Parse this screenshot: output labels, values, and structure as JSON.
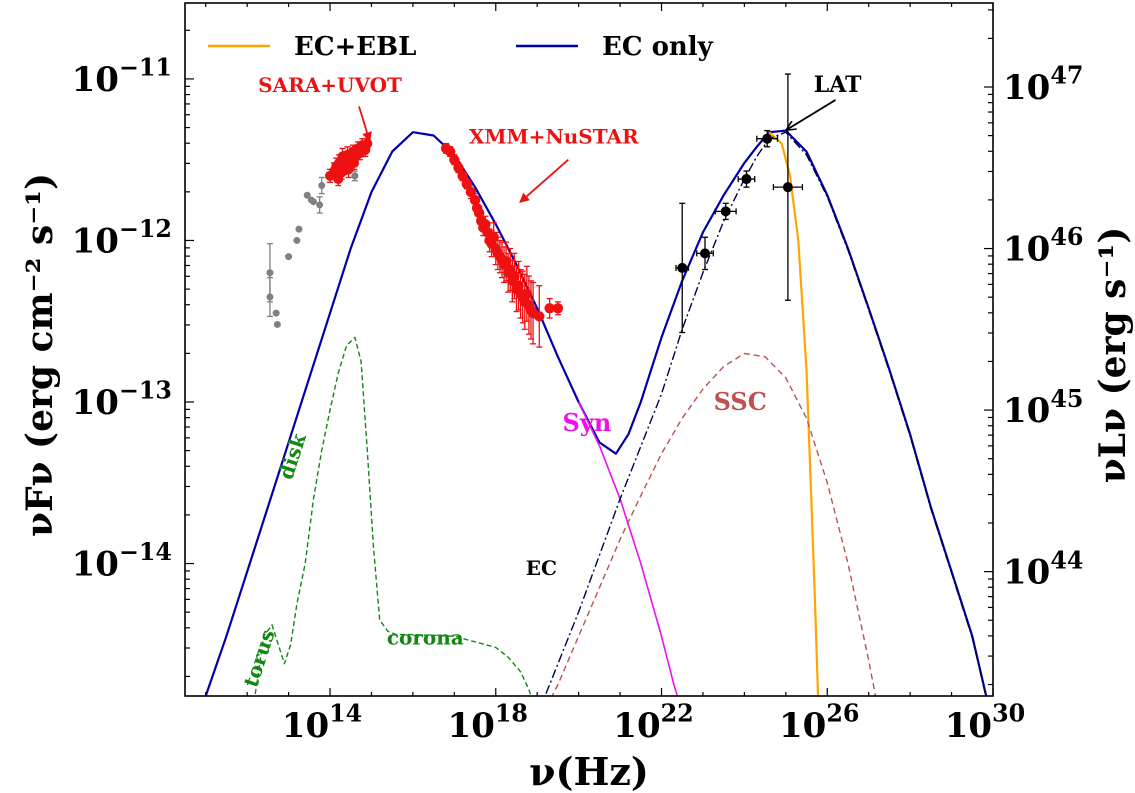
{
  "chart_data": {
    "type": "line",
    "xlabel": "ν(Hz)",
    "ylabel": "νFν (erg cm⁻² s⁻¹)",
    "ylabel_right": "νLν (erg s⁻¹)",
    "xscale": "log",
    "yscale": "log",
    "xlim_log10": [
      10.5,
      30.0
    ],
    "ylim_log10": [
      -14.82,
      -10.53
    ],
    "grid": false,
    "legend_position": "top",
    "x_ticks": [
      {
        "exp": 14,
        "label": "10",
        "sup": "14"
      },
      {
        "exp": 18,
        "label": "10",
        "sup": "18"
      },
      {
        "exp": 22,
        "label": "10",
        "sup": "22"
      },
      {
        "exp": 26,
        "label": "10",
        "sup": "26"
      },
      {
        "exp": 30,
        "label": "10",
        "sup": "30"
      }
    ],
    "y_ticks": [
      {
        "exp": -11,
        "label": "10",
        "sup": "−11"
      },
      {
        "exp": -12,
        "label": "10",
        "sup": "−12"
      },
      {
        "exp": -13,
        "label": "10",
        "sup": "−13"
      },
      {
        "exp": -14,
        "label": "10",
        "sup": "−14"
      }
    ],
    "y_ticks_right": [
      {
        "at_left_log10": -11.05,
        "label": "10",
        "sup": "47"
      },
      {
        "at_left_log10": -12.05,
        "label": "10",
        "sup": "46"
      },
      {
        "at_left_log10": -13.05,
        "label": "10",
        "sup": "45"
      },
      {
        "at_left_log10": -14.05,
        "label": "10",
        "sup": "44"
      }
    ],
    "legend": [
      {
        "label": "EC+EBL",
        "color": "#ffa500"
      },
      {
        "label": "EC only",
        "color": "#0000aa"
      }
    ],
    "annotations": [
      {
        "text": "SARA+UVOT",
        "color": "#ee1111",
        "x": 14.0,
        "y": -11.08
      },
      {
        "text": "XMM+NuSTAR",
        "color": "#ee1111",
        "x": 19.4,
        "y": -11.4
      },
      {
        "text": "LAT",
        "color": "#000000",
        "x": 26.25,
        "y": -11.08
      },
      {
        "text": "Syn",
        "color": "#ee11ee",
        "x": 20.2,
        "y": -13.18
      },
      {
        "text": "SSC",
        "color": "#c05050",
        "x": 23.9,
        "y": -13.05
      },
      {
        "text": "EC",
        "color": "#000000",
        "x": 19.1,
        "y": -14.07
      },
      {
        "text": "disk",
        "color": "#118811",
        "x": 13.25,
        "y": -13.35,
        "rotate": -72
      },
      {
        "text": "torus",
        "color": "#118811",
        "x": 12.45,
        "y": -14.6,
        "rotate": -72
      },
      {
        "text": "corona",
        "color": "#118811",
        "x": 16.3,
        "y": -14.5
      }
    ],
    "series": [
      {
        "name": "EC only",
        "color": "#0000aa",
        "width": 2.2,
        "dash": "",
        "x": [
          10.5,
          11.0,
          11.5,
          12.0,
          12.5,
          13.0,
          13.5,
          14.0,
          14.5,
          15.0,
          15.5,
          16.0,
          16.5,
          17.0,
          17.5,
          18.0,
          18.5,
          19.0,
          19.5,
          20.0,
          20.5,
          20.9,
          21.2,
          21.5,
          22.0,
          22.5,
          23.0,
          23.5,
          24.0,
          24.3,
          24.6,
          25.0,
          25.5,
          26.0,
          26.5,
          27.0,
          27.5,
          28.0,
          28.5,
          29.0,
          29.5,
          30.0
        ],
        "y": [
          -15.2,
          -14.82,
          -14.45,
          -14.05,
          -13.65,
          -13.25,
          -12.85,
          -12.45,
          -12.05,
          -11.7,
          -11.45,
          -11.33,
          -11.35,
          -11.47,
          -11.67,
          -11.9,
          -12.15,
          -12.42,
          -12.72,
          -13.0,
          -13.25,
          -13.32,
          -13.2,
          -13.0,
          -12.6,
          -12.25,
          -11.95,
          -11.72,
          -11.52,
          -11.42,
          -11.33,
          -11.32,
          -11.45,
          -11.72,
          -12.05,
          -12.42,
          -12.8,
          -13.2,
          -13.65,
          -14.05,
          -14.45,
          -15.0
        ]
      },
      {
        "name": "EC+EBL",
        "color": "#ffa500",
        "width": 2.2,
        "dash": "",
        "x": [
          24.6,
          24.9,
          25.1,
          25.3,
          25.5,
          25.6,
          25.7,
          25.8
        ],
        "y": [
          -11.33,
          -11.4,
          -11.6,
          -12.0,
          -12.8,
          -13.5,
          -14.2,
          -15.0
        ]
      },
      {
        "name": "Syn",
        "color": "#ee11ee",
        "width": 1.6,
        "dash": "",
        "x": [
          20.0,
          20.5,
          21.0,
          21.5,
          22.0,
          22.3,
          22.6,
          22.8
        ],
        "y": [
          -13.0,
          -13.27,
          -13.6,
          -14.0,
          -14.45,
          -14.75,
          -15.0,
          -15.2
        ]
      },
      {
        "name": "EC",
        "color": "#000044",
        "width": 1.4,
        "dash": "9,3,2,3",
        "x": [
          18.9,
          19.3,
          20.0,
          21.0,
          22.0,
          22.5,
          23.0,
          23.5,
          24.0,
          24.3,
          24.6,
          25.0,
          25.5,
          26.0,
          26.5,
          27.0,
          27.5,
          28.0,
          28.5,
          29.0,
          29.5,
          30.0
        ],
        "y": [
          -15.0,
          -14.75,
          -14.3,
          -13.6,
          -12.95,
          -12.55,
          -12.2,
          -11.88,
          -11.62,
          -11.48,
          -11.37,
          -11.33,
          -11.47,
          -11.73,
          -12.06,
          -12.43,
          -12.81,
          -13.21,
          -13.66,
          -14.06,
          -14.46,
          -15.01
        ]
      },
      {
        "name": "SSC",
        "color": "#c05050",
        "width": 1.4,
        "dash": "6,4",
        "x": [
          19.0,
          19.5,
          20.0,
          20.5,
          21.0,
          21.5,
          22.0,
          22.5,
          23.0,
          23.5,
          24.0,
          24.5,
          25.0,
          25.5,
          26.0,
          26.5,
          27.0,
          27.3
        ],
        "y": [
          -15.0,
          -14.75,
          -14.45,
          -14.15,
          -13.85,
          -13.58,
          -13.32,
          -13.1,
          -12.92,
          -12.78,
          -12.7,
          -12.72,
          -12.85,
          -13.1,
          -13.5,
          -14.0,
          -14.6,
          -15.0
        ]
      },
      {
        "name": "disk+torus+corona",
        "color": "#118811",
        "width": 1.4,
        "dash": "5,3",
        "x": [
          12.0,
          12.2,
          12.4,
          12.6,
          12.75,
          12.9,
          13.05,
          13.2,
          13.4,
          13.6,
          13.8,
          14.0,
          14.2,
          14.4,
          14.6,
          14.75,
          14.9,
          15.05,
          15.2,
          15.4,
          15.6,
          16.0,
          17.0,
          18.0,
          18.3,
          18.6,
          18.8,
          18.95
        ],
        "y": [
          -15.1,
          -14.8,
          -14.45,
          -14.38,
          -14.5,
          -14.62,
          -14.5,
          -14.25,
          -14.0,
          -13.6,
          -13.3,
          -13.05,
          -12.82,
          -12.65,
          -12.6,
          -12.75,
          -13.3,
          -13.9,
          -14.35,
          -14.42,
          -14.44,
          -14.44,
          -14.45,
          -14.52,
          -14.58,
          -14.67,
          -14.78,
          -14.9
        ]
      }
    ],
    "points": [
      {
        "name": "archival",
        "color": "#808080",
        "r": 3.5,
        "data": [
          [
            12.55,
            -12.2,
            0.18,
            0
          ],
          [
            12.55,
            -12.35,
            0.12,
            0
          ],
          [
            12.7,
            -12.45,
            0,
            0
          ],
          [
            12.73,
            -12.52,
            0,
            0
          ],
          [
            13.0,
            -12.1,
            0,
            0
          ],
          [
            13.2,
            -12.0,
            0,
            0
          ],
          [
            13.25,
            -11.93,
            0,
            0
          ],
          [
            13.45,
            -11.72,
            0,
            0
          ],
          [
            13.55,
            -11.75,
            0,
            0
          ],
          [
            13.6,
            -11.76,
            0,
            0
          ],
          [
            13.75,
            -11.78,
            0.05,
            0
          ],
          [
            13.8,
            -11.66,
            0.05,
            0
          ],
          [
            14.1,
            -11.6,
            0,
            0
          ],
          [
            14.6,
            -11.6,
            0.03,
            0
          ]
        ]
      },
      {
        "name": "SARA+UVOT",
        "color": "#ee1111",
        "r": 5,
        "data": [
          [
            14.0,
            -11.6,
            0.04,
            0
          ],
          [
            14.1,
            -11.57,
            0.05,
            0
          ],
          [
            14.15,
            -11.54,
            0.05,
            0
          ],
          [
            14.2,
            -11.62,
            0.04,
            0
          ],
          [
            14.22,
            -11.52,
            0.05,
            0
          ],
          [
            14.28,
            -11.58,
            0.04,
            0
          ],
          [
            14.3,
            -11.48,
            0.05,
            0
          ],
          [
            14.35,
            -11.55,
            0.04,
            0
          ],
          [
            14.38,
            -11.5,
            0.05,
            0
          ],
          [
            14.42,
            -11.47,
            0.05,
            0
          ],
          [
            14.45,
            -11.56,
            0.05,
            0
          ],
          [
            14.5,
            -11.5,
            0.04,
            0
          ],
          [
            14.55,
            -11.45,
            0.04,
            0
          ],
          [
            14.58,
            -11.52,
            0.04,
            0
          ],
          [
            14.62,
            -11.48,
            0.04,
            0
          ],
          [
            14.67,
            -11.43,
            0.04,
            0
          ],
          [
            14.72,
            -11.46,
            0.04,
            0
          ],
          [
            14.78,
            -11.41,
            0.04,
            0
          ],
          [
            14.85,
            -11.44,
            0.04,
            0
          ],
          [
            14.9,
            -11.4,
            0.03,
            0
          ]
        ]
      },
      {
        "name": "XMM+NuSTAR",
        "color": "#ee1111",
        "r": 5.2,
        "data": [
          [
            16.8,
            -11.43,
            0.03,
            0
          ],
          [
            16.9,
            -11.45,
            0.03,
            0
          ],
          [
            17.0,
            -11.5,
            0.03,
            0
          ],
          [
            17.1,
            -11.55,
            0.03,
            0
          ],
          [
            17.2,
            -11.6,
            0.03,
            0
          ],
          [
            17.3,
            -11.65,
            0.03,
            0
          ],
          [
            17.4,
            -11.7,
            0.04,
            0
          ],
          [
            17.5,
            -11.75,
            0.04,
            0
          ],
          [
            17.55,
            -11.8,
            0.04,
            0
          ],
          [
            17.6,
            -11.83,
            0.04,
            0
          ],
          [
            17.65,
            -11.88,
            0.05,
            0
          ],
          [
            17.7,
            -11.92,
            0.05,
            0
          ],
          [
            17.75,
            -11.9,
            0.05,
            0
          ],
          [
            17.8,
            -11.95,
            0.06,
            0
          ],
          [
            17.85,
            -12.0,
            0.07,
            0
          ],
          [
            17.9,
            -12.02,
            0.08,
            0
          ],
          [
            17.95,
            -11.98,
            0.09,
            0
          ],
          [
            18.0,
            -12.05,
            0.1,
            0
          ],
          [
            18.05,
            -12.08,
            0.1,
            0
          ],
          [
            18.1,
            -12.1,
            0.1,
            0
          ],
          [
            18.15,
            -12.12,
            0.11,
            0
          ],
          [
            18.2,
            -12.15,
            0.11,
            0
          ],
          [
            18.25,
            -12.13,
            0.12,
            0
          ],
          [
            18.3,
            -12.2,
            0.12,
            0
          ],
          [
            18.35,
            -12.18,
            0.13,
            0
          ],
          [
            18.4,
            -12.25,
            0.13,
            0
          ],
          [
            18.45,
            -12.22,
            0.14,
            0
          ],
          [
            18.5,
            -12.3,
            0.14,
            0
          ],
          [
            18.55,
            -12.28,
            0.15,
            0
          ],
          [
            18.6,
            -12.33,
            0.15,
            0
          ],
          [
            18.65,
            -12.35,
            0.16,
            0
          ],
          [
            18.7,
            -12.38,
            0.17,
            0
          ],
          [
            18.75,
            -12.33,
            0.17,
            0
          ],
          [
            18.8,
            -12.4,
            0.18,
            0
          ],
          [
            18.85,
            -12.43,
            0.18,
            0
          ],
          [
            18.9,
            -12.45,
            0.19,
            0
          ],
          [
            19.05,
            -12.47,
            0.19,
            0
          ],
          [
            19.3,
            -12.42,
            0.06,
            0
          ],
          [
            19.5,
            -12.42,
            0.04,
            0
          ]
        ]
      },
      {
        "name": "LAT",
        "color": "#000000",
        "r": 5,
        "data": [
          [
            22.5,
            -12.17,
            0.4,
            0.15
          ],
          [
            23.05,
            -12.08,
            0.1,
            0.2
          ],
          [
            23.55,
            -11.82,
            0.05,
            0.25
          ],
          [
            24.05,
            -11.62,
            0.05,
            0.2
          ],
          [
            24.55,
            -11.37,
            0.05,
            0.25
          ],
          [
            25.05,
            -11.67,
            0.7,
            0.35
          ]
        ]
      }
    ],
    "arrows": [
      {
        "from": [
          14.7,
          -11.17
        ],
        "to": [
          14.95,
          -11.38
        ],
        "color": "#ee1111"
      },
      {
        "from": [
          19.75,
          -11.5
        ],
        "to": [
          18.6,
          -11.76
        ],
        "color": "#ee1111"
      },
      {
        "from": [
          26.2,
          -11.13
        ],
        "to": [
          25.05,
          -11.31
        ],
        "color": "#000000"
      }
    ]
  }
}
